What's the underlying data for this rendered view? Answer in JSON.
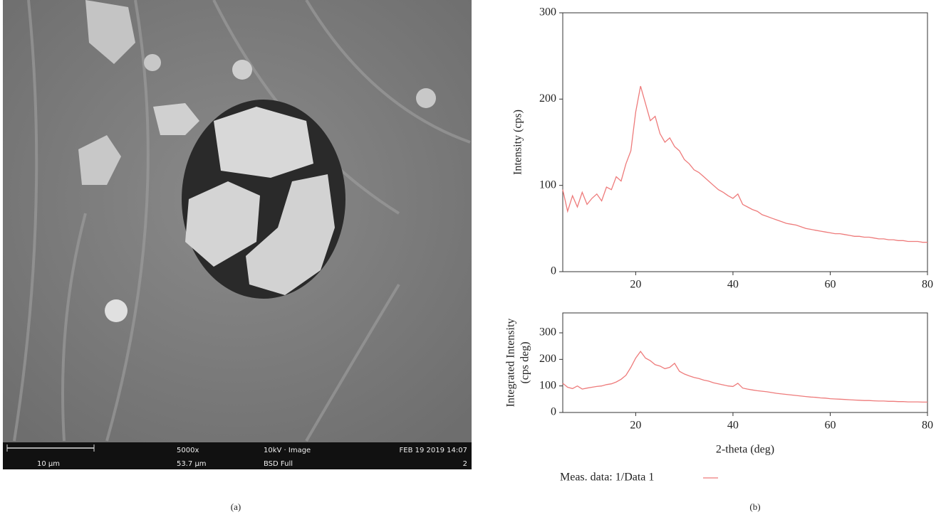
{
  "image_panel": {
    "scale_bar": "10 µm",
    "magnification": "5000x",
    "field": "53.7 µm",
    "mode": "10kV · Image",
    "detector": "BSD Full",
    "date": "FEB 19 2019 14:07",
    "index": "2",
    "caption": "(a)"
  },
  "caption_b": "(b)",
  "chart_data": [
    {
      "type": "line",
      "ylabel": [
        "Intensity (cps)"
      ],
      "xlim": [
        5,
        80
      ],
      "ylim": [
        0,
        300
      ],
      "xticks": [
        20,
        40,
        60,
        80
      ],
      "yticks": [
        0,
        100,
        200,
        300
      ],
      "x": [
        5,
        6,
        7,
        8,
        9,
        10,
        11,
        12,
        13,
        14,
        15,
        16,
        17,
        18,
        19,
        20,
        21,
        22,
        23,
        24,
        25,
        26,
        27,
        28,
        29,
        30,
        31,
        32,
        33,
        34,
        35,
        36,
        37,
        38,
        39,
        40,
        41,
        42,
        43,
        44,
        45,
        46,
        47,
        48,
        49,
        50,
        51,
        52,
        53,
        54,
        55,
        56,
        57,
        58,
        59,
        60,
        61,
        62,
        63,
        64,
        65,
        66,
        67,
        68,
        69,
        70,
        71,
        72,
        73,
        74,
        75,
        76,
        77,
        78,
        79,
        80
      ],
      "series": [
        {
          "name": "Meas. data: 1/Data 1",
          "color": "#ee7b7b",
          "values": [
            95,
            70,
            88,
            75,
            92,
            78,
            85,
            90,
            82,
            98,
            95,
            110,
            105,
            125,
            140,
            185,
            215,
            195,
            175,
            180,
            160,
            150,
            155,
            145,
            140,
            130,
            125,
            118,
            115,
            110,
            105,
            100,
            95,
            92,
            88,
            85,
            90,
            78,
            75,
            72,
            70,
            66,
            64,
            62,
            60,
            58,
            56,
            55,
            54,
            52,
            50,
            49,
            48,
            47,
            46,
            45,
            44,
            44,
            43,
            42,
            41,
            41,
            40,
            40,
            39,
            38,
            38,
            37,
            37,
            36,
            36,
            35,
            35,
            35,
            34,
            34
          ]
        }
      ]
    },
    {
      "type": "line",
      "ylabel": [
        "Integrated Intensity",
        "(cps deg)"
      ],
      "xlabel": "2-theta (deg)",
      "xlim": [
        5,
        80
      ],
      "ylim": [
        0,
        375
      ],
      "xticks": [
        20,
        40,
        60,
        80
      ],
      "yticks": [
        0,
        100,
        200,
        300
      ],
      "x": [
        5,
        6,
        7,
        8,
        9,
        10,
        11,
        12,
        13,
        14,
        15,
        16,
        17,
        18,
        19,
        20,
        21,
        22,
        23,
        24,
        25,
        26,
        27,
        28,
        29,
        30,
        31,
        32,
        33,
        34,
        35,
        36,
        37,
        38,
        39,
        40,
        41,
        42,
        43,
        44,
        45,
        46,
        47,
        48,
        49,
        50,
        51,
        52,
        53,
        54,
        55,
        56,
        57,
        58,
        59,
        60,
        61,
        62,
        63,
        64,
        65,
        66,
        67,
        68,
        69,
        70,
        71,
        72,
        73,
        74,
        75,
        76,
        77,
        78,
        79,
        80
      ],
      "series": [
        {
          "name": "Meas. data: 1/Data 1",
          "color": "#ee7b7b",
          "values": [
            110,
            95,
            90,
            100,
            88,
            92,
            95,
            98,
            100,
            105,
            108,
            115,
            125,
            140,
            170,
            205,
            230,
            205,
            195,
            180,
            175,
            165,
            170,
            185,
            155,
            145,
            138,
            132,
            128,
            122,
            118,
            112,
            108,
            104,
            100,
            98,
            110,
            92,
            88,
            85,
            82,
            80,
            78,
            75,
            72,
            70,
            68,
            66,
            64,
            62,
            60,
            58,
            57,
            55,
            54,
            52,
            51,
            50,
            49,
            48,
            47,
            46,
            45,
            45,
            44,
            43,
            43,
            42,
            42,
            41,
            41,
            40,
            40,
            40,
            39,
            39
          ]
        }
      ]
    }
  ]
}
